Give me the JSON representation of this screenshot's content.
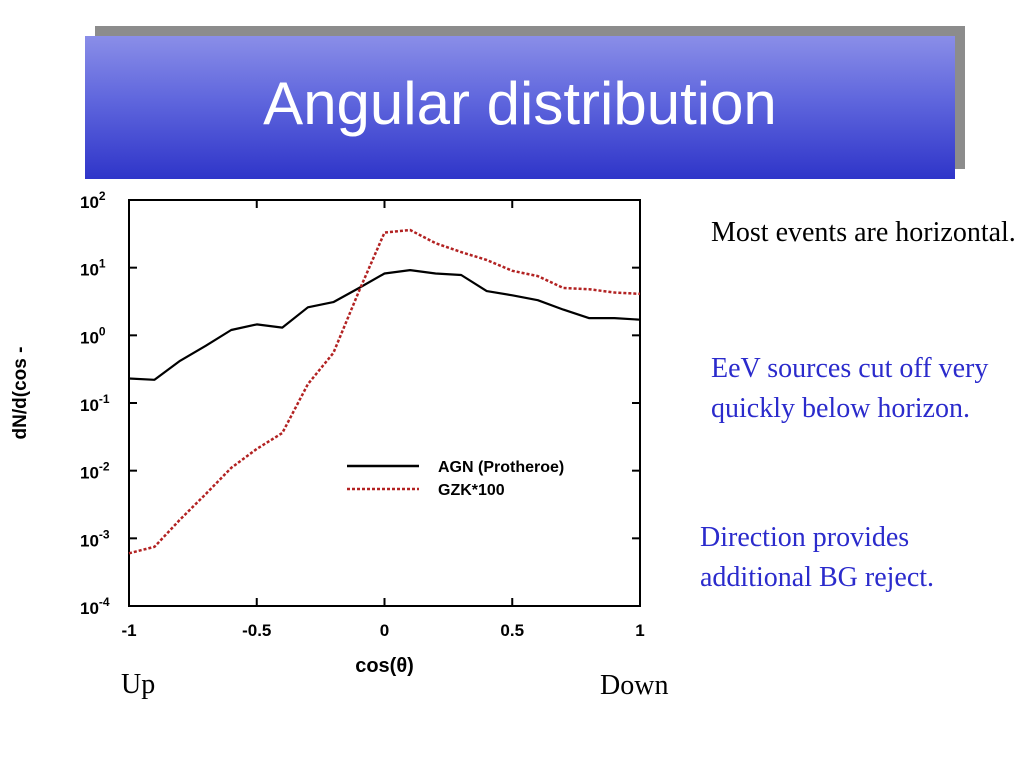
{
  "slide": {
    "title": "Angular distribution",
    "notes": {
      "horizontal": "Most events are horizontal.",
      "eev": "EeV sources cut off very quickly below horizon.",
      "direction": "Direction provides additional BG reject."
    },
    "up_label": "Up",
    "down_label": "Down"
  },
  "chart_data": {
    "type": "line",
    "xlabel": "cos(θ)",
    "ylabel": "dN/d(cos -",
    "xlim": [
      -1,
      1
    ],
    "ylim": [
      0.0001,
      100
    ],
    "yscale": "log",
    "grid": false,
    "legend_placement": "center-right",
    "x_ticks": [
      {
        "value": -1,
        "label": "-1"
      },
      {
        "value": -0.5,
        "label": "-0.5"
      },
      {
        "value": 0,
        "label": "0"
      },
      {
        "value": 0.5,
        "label": "0.5"
      },
      {
        "value": 1,
        "label": "1"
      }
    ],
    "y_ticks": [
      {
        "value": 100,
        "base": "10",
        "exp": "2"
      },
      {
        "value": 10,
        "base": "10",
        "exp": "1"
      },
      {
        "value": 1,
        "base": "10",
        "exp": "0"
      },
      {
        "value": 0.1,
        "base": "10",
        "exp": "-1"
      },
      {
        "value": 0.01,
        "base": "10",
        "exp": "-2"
      },
      {
        "value": 0.001,
        "base": "10",
        "exp": "-3"
      },
      {
        "value": 0.0001,
        "base": "10",
        "exp": "-4"
      }
    ],
    "series": [
      {
        "name": "AGN (Protheroe)",
        "color": "#000000",
        "dash": "solid",
        "points": [
          [
            -1.0,
            0.23
          ],
          [
            -0.9,
            0.22
          ],
          [
            -0.8,
            0.42
          ],
          [
            -0.7,
            0.7
          ],
          [
            -0.6,
            1.2
          ],
          [
            -0.5,
            1.45
          ],
          [
            -0.4,
            1.3
          ],
          [
            -0.3,
            2.6
          ],
          [
            -0.2,
            3.1
          ],
          [
            -0.1,
            5.0
          ],
          [
            0.0,
            8.2
          ],
          [
            0.1,
            9.2
          ],
          [
            0.2,
            8.2
          ],
          [
            0.3,
            7.8
          ],
          [
            0.4,
            4.5
          ],
          [
            0.5,
            3.9
          ],
          [
            0.6,
            3.3
          ],
          [
            0.7,
            2.4
          ],
          [
            0.8,
            1.8
          ],
          [
            0.9,
            1.8
          ],
          [
            1.0,
            1.7
          ]
        ]
      },
      {
        "name": "GZK*100",
        "color": "#b22222",
        "dash": "dotted",
        "points": [
          [
            -1.0,
            0.0006
          ],
          [
            -0.9,
            0.00075
          ],
          [
            -0.8,
            0.0019
          ],
          [
            -0.7,
            0.0045
          ],
          [
            -0.6,
            0.011
          ],
          [
            -0.5,
            0.021
          ],
          [
            -0.4,
            0.036
          ],
          [
            -0.3,
            0.19
          ],
          [
            -0.2,
            0.55
          ],
          [
            -0.1,
            4.5
          ],
          [
            0.0,
            33.0
          ],
          [
            0.1,
            36.0
          ],
          [
            0.2,
            23.0
          ],
          [
            0.3,
            17.0
          ],
          [
            0.4,
            13.0
          ],
          [
            0.5,
            9.0
          ],
          [
            0.6,
            7.5
          ],
          [
            0.7,
            5.0
          ],
          [
            0.8,
            4.8
          ],
          [
            0.9,
            4.3
          ],
          [
            1.0,
            4.1
          ]
        ]
      }
    ]
  }
}
